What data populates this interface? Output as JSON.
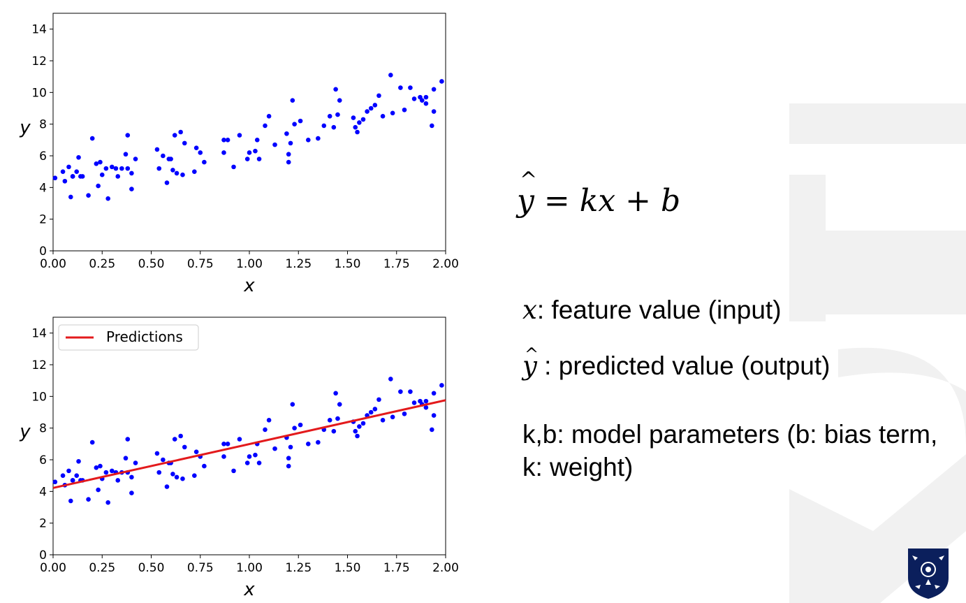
{
  "colors": {
    "points": "#0000ff",
    "line": "#e31a1c",
    "watermark": "#f1f1f1",
    "crest": "#0b1f5c"
  },
  "formula": {
    "lhs": "y",
    "rest": " = kx + b"
  },
  "descriptions": {
    "x_sym": "x",
    "x_text": ": feature value (input)",
    "yhat_sym": "y",
    "yhat_text": " : predicted value (output)",
    "params_text": "k,b: model parameters (b: bias term, k: weight)"
  },
  "chart_data": [
    {
      "type": "scatter",
      "xlabel": "x",
      "ylabel": "y",
      "xlim": [
        0,
        2
      ],
      "ylim": [
        0,
        15
      ],
      "xticks": [
        "0.00",
        "0.25",
        "0.50",
        "0.75",
        "1.00",
        "1.25",
        "1.50",
        "1.75",
        "2.00"
      ],
      "yticks": [
        "0",
        "2",
        "4",
        "6",
        "8",
        "10",
        "12",
        "14"
      ],
      "legend": null,
      "x": [
        0.01,
        0.05,
        0.06,
        0.08,
        0.09,
        0.1,
        0.1,
        0.12,
        0.13,
        0.14,
        0.15,
        0.18,
        0.2,
        0.22,
        0.23,
        0.24,
        0.25,
        0.27,
        0.28,
        0.3,
        0.32,
        0.33,
        0.35,
        0.37,
        0.38,
        0.38,
        0.4,
        0.4,
        0.42,
        0.53,
        0.54,
        0.56,
        0.58,
        0.59,
        0.6,
        0.61,
        0.62,
        0.63,
        0.65,
        0.66,
        0.67,
        0.72,
        0.73,
        0.75,
        0.77,
        0.87,
        0.87,
        0.89,
        0.92,
        0.95,
        0.99,
        1.0,
        1.03,
        1.04,
        1.05,
        1.08,
        1.1,
        1.13,
        1.19,
        1.2,
        1.2,
        1.21,
        1.22,
        1.23,
        1.26,
        1.3,
        1.35,
        1.38,
        1.41,
        1.43,
        1.44,
        1.45,
        1.46,
        1.53,
        1.54,
        1.55,
        1.56,
        1.58,
        1.6,
        1.62,
        1.64,
        1.66,
        1.68,
        1.72,
        1.73,
        1.77,
        1.79,
        1.82,
        1.84,
        1.87,
        1.88,
        1.9,
        1.9,
        1.93,
        1.94,
        1.94,
        1.98
      ],
      "y": [
        4.6,
        5.0,
        4.4,
        5.3,
        3.4,
        4.7,
        4.7,
        5.0,
        5.9,
        4.7,
        4.7,
        3.5,
        7.1,
        5.5,
        4.1,
        5.6,
        4.8,
        5.2,
        3.3,
        5.3,
        5.2,
        4.7,
        5.2,
        6.1,
        7.3,
        5.2,
        4.9,
        3.9,
        5.8,
        6.4,
        5.2,
        6.0,
        4.3,
        5.8,
        5.8,
        5.1,
        7.3,
        4.9,
        7.5,
        4.8,
        6.8,
        5.0,
        6.5,
        6.2,
        5.6,
        7.0,
        6.2,
        7.0,
        5.3,
        7.3,
        5.8,
        6.2,
        6.3,
        7.0,
        5.8,
        7.9,
        8.5,
        6.7,
        7.4,
        5.6,
        6.1,
        6.8,
        9.5,
        8.0,
        8.2,
        7.0,
        7.1,
        7.9,
        8.5,
        7.8,
        10.2,
        8.6,
        9.5,
        8.4,
        7.8,
        7.5,
        8.1,
        8.3,
        8.8,
        9.0,
        9.2,
        9.8,
        8.5,
        11.1,
        8.7,
        10.3,
        8.9,
        10.3,
        9.6,
        9.7,
        9.5,
        9.7,
        9.3,
        7.9,
        10.2,
        8.8,
        10.7
      ]
    },
    {
      "type": "scatter",
      "xlabel": "x",
      "ylabel": "y",
      "xlim": [
        0,
        2
      ],
      "ylim": [
        0,
        15
      ],
      "xticks": [
        "0.00",
        "0.25",
        "0.50",
        "0.75",
        "1.00",
        "1.25",
        "1.50",
        "1.75",
        "2.00"
      ],
      "yticks": [
        "0",
        "2",
        "4",
        "6",
        "8",
        "10",
        "12",
        "14"
      ],
      "legend": {
        "label": "Predictions",
        "placement": "top-left"
      },
      "line": {
        "x": [
          0,
          2
        ],
        "y": [
          4.22,
          9.76
        ]
      },
      "x": [
        0.01,
        0.05,
        0.06,
        0.08,
        0.09,
        0.1,
        0.1,
        0.12,
        0.13,
        0.14,
        0.15,
        0.18,
        0.2,
        0.22,
        0.23,
        0.24,
        0.25,
        0.27,
        0.28,
        0.3,
        0.32,
        0.33,
        0.35,
        0.37,
        0.38,
        0.38,
        0.4,
        0.4,
        0.42,
        0.53,
        0.54,
        0.56,
        0.58,
        0.59,
        0.6,
        0.61,
        0.62,
        0.63,
        0.65,
        0.66,
        0.67,
        0.72,
        0.73,
        0.75,
        0.77,
        0.87,
        0.87,
        0.89,
        0.92,
        0.95,
        0.99,
        1.0,
        1.03,
        1.04,
        1.05,
        1.08,
        1.1,
        1.13,
        1.19,
        1.2,
        1.2,
        1.21,
        1.22,
        1.23,
        1.26,
        1.3,
        1.35,
        1.38,
        1.41,
        1.43,
        1.44,
        1.45,
        1.46,
        1.53,
        1.54,
        1.55,
        1.56,
        1.58,
        1.6,
        1.62,
        1.64,
        1.66,
        1.68,
        1.72,
        1.73,
        1.77,
        1.79,
        1.82,
        1.84,
        1.87,
        1.88,
        1.9,
        1.9,
        1.93,
        1.94,
        1.94,
        1.98
      ],
      "y": [
        4.6,
        5.0,
        4.4,
        5.3,
        3.4,
        4.7,
        4.7,
        5.0,
        5.9,
        4.7,
        4.7,
        3.5,
        7.1,
        5.5,
        4.1,
        5.6,
        4.8,
        5.2,
        3.3,
        5.3,
        5.2,
        4.7,
        5.2,
        6.1,
        7.3,
        5.2,
        4.9,
        3.9,
        5.8,
        6.4,
        5.2,
        6.0,
        4.3,
        5.8,
        5.8,
        5.1,
        7.3,
        4.9,
        7.5,
        4.8,
        6.8,
        5.0,
        6.5,
        6.2,
        5.6,
        7.0,
        6.2,
        7.0,
        5.3,
        7.3,
        5.8,
        6.2,
        6.3,
        7.0,
        5.8,
        7.9,
        8.5,
        6.7,
        7.4,
        5.6,
        6.1,
        6.8,
        9.5,
        8.0,
        8.2,
        7.0,
        7.1,
        7.9,
        8.5,
        7.8,
        10.2,
        8.6,
        9.5,
        8.4,
        7.8,
        7.5,
        8.1,
        8.3,
        8.8,
        9.0,
        9.2,
        9.8,
        8.5,
        11.1,
        8.7,
        10.3,
        8.9,
        10.3,
        9.6,
        9.7,
        9.5,
        9.7,
        9.3,
        7.9,
        10.2,
        8.8,
        10.7
      ]
    }
  ]
}
